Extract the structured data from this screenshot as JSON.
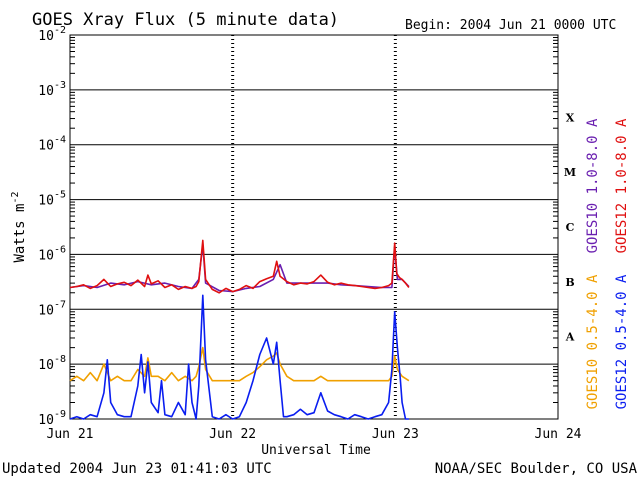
{
  "chart_data": {
    "type": "line",
    "title": "GOES Xray Flux (5 minute data)",
    "begin_text": "Begin:  2004 Jun 21 0000 UTC",
    "xlabel": "Universal Time",
    "ylabel": "Watts m",
    "ylabel_exp": "-2",
    "footer_left": "Updated 2004 Jun 23 01:41:03 UTC",
    "footer_right": "NOAA/SEC Boulder, CO USA",
    "x_unit": "hours since 2004 Jun 21 0000 UTC",
    "xlim": [
      0,
      72
    ],
    "x_ticks": [
      {
        "x": 0,
        "label": "Jun 21"
      },
      {
        "x": 24,
        "label": "Jun 22"
      },
      {
        "x": 48,
        "label": "Jun 23"
      },
      {
        "x": 72,
        "label": "Jun 24"
      }
    ],
    "yscale": "log",
    "ylim": [
      1e-09,
      0.01
    ],
    "y_ticks": [
      {
        "exp": -2,
        "base": "10",
        "sup": "-2"
      },
      {
        "exp": -3,
        "base": "10",
        "sup": "-3"
      },
      {
        "exp": -4,
        "base": "10",
        "sup": "-4"
      },
      {
        "exp": -5,
        "base": "10",
        "sup": "-5"
      },
      {
        "exp": -6,
        "base": "10",
        "sup": "-6"
      },
      {
        "exp": -7,
        "base": "10",
        "sup": "-7"
      },
      {
        "exp": -8,
        "base": "10",
        "sup": "-8"
      },
      {
        "exp": -9,
        "base": "10",
        "sup": "-9"
      }
    ],
    "flare_classes": [
      {
        "label": "X",
        "log_mid": -3.5
      },
      {
        "label": "M",
        "log_mid": -4.5
      },
      {
        "label": "C",
        "log_mid": -5.5
      },
      {
        "label": "B",
        "log_mid": -6.5
      },
      {
        "label": "A",
        "log_mid": -7.5
      }
    ],
    "grid": true,
    "legend_placement": "right, vertical",
    "series": [
      {
        "name": "GOES10 1.0-8.0 A",
        "color": "#6a1fb0",
        "x": [
          0,
          2,
          4,
          6,
          8,
          10,
          12,
          14,
          16,
          18,
          19,
          19.6,
          20,
          22,
          24,
          26,
          28,
          30,
          31,
          32,
          34,
          36,
          38,
          40,
          42,
          44,
          46,
          47.5,
          47.9,
          48.3,
          49,
          50
        ],
        "y": [
          2.5e-07,
          2.7e-07,
          2.5e-07,
          3e-07,
          2.8e-07,
          3.2e-07,
          2.8e-07,
          3e-07,
          2.6e-07,
          2.4e-07,
          3.5e-07,
          1.5e-06,
          3e-07,
          2.2e-07,
          2.1e-07,
          2.4e-07,
          2.6e-07,
          3.5e-07,
          6.5e-07,
          3e-07,
          3e-07,
          3e-07,
          3e-07,
          2.8e-07,
          2.7e-07,
          2.6e-07,
          2.5e-07,
          2.5e-07,
          1.4e-06,
          3.5e-07,
          3.5e-07,
          2.6e-07
        ]
      },
      {
        "name": "GOES12 1.0-8.0 A",
        "color": "#e01010",
        "x": [
          0,
          1,
          2,
          3,
          4,
          5,
          6,
          7,
          8,
          9,
          10,
          11,
          11.5,
          12,
          13,
          14,
          15,
          16,
          17,
          18,
          18.6,
          19,
          19.6,
          20,
          21,
          22,
          23,
          24,
          25,
          26,
          27,
          28,
          29,
          30,
          30.5,
          31,
          32,
          33,
          34,
          35,
          36,
          37,
          38,
          39,
          40,
          41,
          42,
          43,
          44,
          45,
          46,
          47,
          47.5,
          47.9,
          48.2,
          48.6,
          49,
          49.5,
          50
        ],
        "y": [
          2.5e-07,
          2.6e-07,
          2.8e-07,
          2.4e-07,
          2.7e-07,
          3.5e-07,
          2.6e-07,
          2.9e-07,
          3.1e-07,
          2.7e-07,
          3.4e-07,
          2.6e-07,
          4.2e-07,
          2.9e-07,
          3.3e-07,
          2.5e-07,
          2.8e-07,
          2.3e-07,
          2.6e-07,
          2.4e-07,
          2.6e-07,
          3.2e-07,
          1.8e-06,
          3.5e-07,
          2.3e-07,
          2e-07,
          2.4e-07,
          2.1e-07,
          2.3e-07,
          2.7e-07,
          2.4e-07,
          3.2e-07,
          3.6e-07,
          4e-07,
          7.5e-07,
          4e-07,
          3.2e-07,
          2.8e-07,
          3e-07,
          2.9e-07,
          3.2e-07,
          4.2e-07,
          3.1e-07,
          2.8e-07,
          3e-07,
          2.8e-07,
          2.7e-07,
          2.6e-07,
          2.5e-07,
          2.4e-07,
          2.5e-07,
          2.7e-07,
          3e-07,
          1.6e-06,
          4.5e-07,
          3.8e-07,
          3.5e-07,
          3e-07,
          2.5e-07
        ]
      },
      {
        "name": "GOES10 0.5-4.0 A",
        "color": "#f0a000",
        "x": [
          0,
          1,
          2,
          3,
          4,
          5,
          6,
          7,
          8,
          9,
          10,
          11,
          11.5,
          12,
          13,
          14,
          15,
          16,
          17,
          18,
          18.6,
          19,
          19.6,
          20,
          21,
          22,
          23,
          24,
          25,
          26,
          27,
          28,
          29,
          30,
          30.5,
          31,
          32,
          33,
          34,
          35,
          36,
          37,
          38,
          39,
          40,
          41,
          42,
          43,
          44,
          45,
          46,
          47,
          47.5,
          47.9,
          48.3,
          49,
          50
        ],
        "y": [
          5e-09,
          6e-09,
          5e-09,
          7e-09,
          5e-09,
          1e-08,
          5e-09,
          6e-09,
          5e-09,
          5e-09,
          8e-09,
          6e-09,
          1.3e-08,
          6e-09,
          6e-09,
          5e-09,
          7e-09,
          5e-09,
          6e-09,
          5e-09,
          6e-09,
          9e-09,
          2e-08,
          8e-09,
          5e-09,
          5e-09,
          5e-09,
          5e-09,
          5e-09,
          6e-09,
          7e-09,
          9e-09,
          1.2e-08,
          1.4e-08,
          1.6e-08,
          1e-08,
          6e-09,
          5e-09,
          5e-09,
          5e-09,
          5e-09,
          6e-09,
          5e-09,
          5e-09,
          5e-09,
          5e-09,
          5e-09,
          5e-09,
          5e-09,
          5e-09,
          5e-09,
          5e-09,
          6e-09,
          1.4e-08,
          8e-09,
          6e-09,
          5e-09
        ]
      },
      {
        "name": "GOES12 0.5-4.0 A",
        "color": "#0a1ef0",
        "x": [
          0,
          1,
          2,
          3,
          4,
          5,
          5.5,
          6,
          7,
          8,
          9,
          10,
          10.5,
          11,
          11.5,
          12,
          13,
          13.5,
          14,
          15,
          16,
          17,
          17.5,
          18,
          18.6,
          19,
          19.6,
          20,
          21,
          22,
          23,
          24,
          25,
          26,
          27,
          28,
          29,
          30,
          30.5,
          31,
          31.5,
          32,
          33,
          34,
          35,
          36,
          37,
          38,
          39,
          40,
          41,
          42,
          43,
          44,
          45,
          46,
          47,
          47.5,
          47.9,
          48.3,
          48.7,
          49,
          49.5,
          50
        ],
        "y": [
          1e-09,
          1.1e-09,
          1e-09,
          1.2e-09,
          1.1e-09,
          3e-09,
          1.2e-08,
          2e-09,
          1.2e-09,
          1.1e-09,
          1.1e-09,
          4e-09,
          1.5e-08,
          3e-09,
          1.1e-08,
          2e-09,
          1.3e-09,
          5e-09,
          1.2e-09,
          1.1e-09,
          2e-09,
          1.2e-09,
          1e-08,
          2e-09,
          1e-09,
          4e-09,
          1.8e-07,
          1.2e-08,
          1.1e-09,
          1e-09,
          1.2e-09,
          1e-09,
          1.1e-09,
          2e-09,
          5e-09,
          1.5e-08,
          3e-08,
          1e-08,
          2.5e-08,
          5e-09,
          1.1e-09,
          1.1e-09,
          1.2e-09,
          1.5e-09,
          1.2e-09,
          1.3e-09,
          3e-09,
          1.4e-09,
          1.2e-09,
          1.1e-09,
          1e-09,
          1.2e-09,
          1.1e-09,
          1e-09,
          1.1e-09,
          1.2e-09,
          2e-09,
          8e-09,
          9e-08,
          2e-08,
          6e-09,
          2e-09,
          1e-09,
          1e-09
        ]
      }
    ]
  }
}
